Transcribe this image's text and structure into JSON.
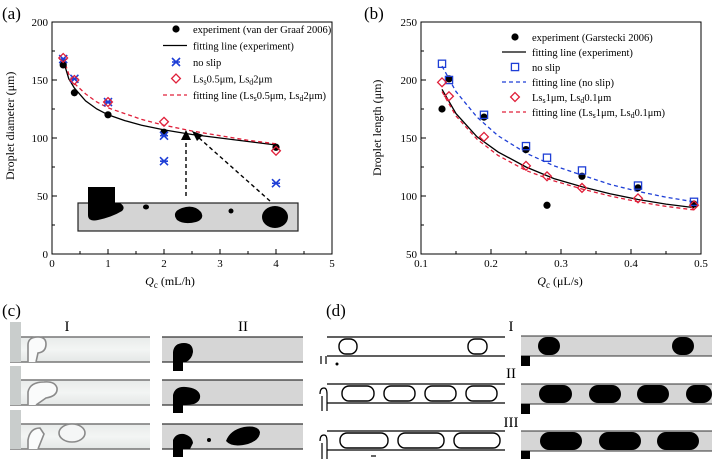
{
  "panels": {
    "a": "(a)",
    "b": "(b)",
    "c": "(c)",
    "d": "(d)"
  },
  "chart_data": [
    {
      "type": "scatter",
      "panel": "(a)",
      "xlabel_main": "Q",
      "xlabel_sub": "c",
      "xlabel_unit": " (mL/h)",
      "ylabel": "Droplet diameter (μm)",
      "xlim": [
        0,
        5
      ],
      "ylim": [
        0,
        200
      ],
      "xticks": [
        "0",
        "1",
        "2",
        "3",
        "4",
        "5"
      ],
      "yticks": [
        "0",
        "50",
        "100",
        "150",
        "200"
      ],
      "legend_position": "top-right",
      "legend": [
        {
          "label": "experiment (van der Graaf 2006)"
        },
        {
          "label": "fitting line (experiment)"
        },
        {
          "label": "no slip"
        },
        {
          "label_parts": [
            "Ls",
            "s",
            "0.5μm, Ls",
            "d",
            "2μm"
          ]
        },
        {
          "label_parts": [
            "fitting line (Ls",
            "s",
            "0.5μm, Ls",
            "d",
            "2μm)"
          ]
        }
      ],
      "series": [
        {
          "name": "experiment (van der Graaf 2006)",
          "marker": "circle",
          "color": "#000000",
          "x": [
            0.2,
            0.4,
            1.0,
            2.0,
            4.0
          ],
          "y": [
            163,
            139,
            120,
            105,
            92
          ]
        },
        {
          "name": "no slip",
          "marker": "cross",
          "color": "#1f3fd6",
          "x": [
            0.2,
            0.4,
            1.0,
            2.0,
            2.0,
            4.0
          ],
          "y": [
            168,
            151,
            131,
            102,
            80,
            61
          ]
        },
        {
          "name": "Ls0.5μm, Ls2μm",
          "marker": "diamond",
          "color": "#e0203a",
          "x": [
            0.2,
            0.4,
            1.0,
            2.0,
            4.0
          ],
          "y": [
            169,
            150,
            131,
            114,
            89
          ]
        }
      ],
      "curves": [
        {
          "name": "fitting line (experiment)",
          "style": "solid",
          "color": "#000000",
          "x": [
            0.2,
            0.3,
            0.4,
            0.6,
            0.8,
            1.0,
            1.3,
            1.6,
            2.0,
            2.5,
            3.0,
            3.5,
            4.0
          ],
          "y": [
            167,
            151,
            143,
            132,
            125,
            120,
            115,
            111,
            107,
            103,
            100,
            97,
            94
          ]
        },
        {
          "name": "fitting line (Ls0.5μm, Ls2μm)",
          "style": "dashed",
          "color": "#e0203a",
          "x": [
            0.2,
            0.3,
            0.4,
            0.6,
            0.8,
            1.0,
            1.3,
            1.6,
            2.0,
            2.5,
            3.0,
            3.5,
            4.0
          ],
          "y": [
            169,
            155,
            147,
            138,
            131,
            126,
            121,
            116,
            111,
            106,
            102,
            98,
            95
          ]
        }
      ]
    },
    {
      "type": "scatter",
      "panel": "(b)",
      "xlabel_main": "Q",
      "xlabel_sub": "c",
      "xlabel_unit": " (μL/s)",
      "ylabel": "Droplet length (μm)",
      "xlim": [
        0.1,
        0.5
      ],
      "ylim": [
        50,
        250
      ],
      "xticks": [
        "0.1",
        "0.2",
        "0.3",
        "0.4",
        "0.5"
      ],
      "yticks": [
        "50",
        "100",
        "150",
        "200",
        "250"
      ],
      "legend_position": "top-right",
      "legend": [
        {
          "label": "experiment (Garstecki 2006)"
        },
        {
          "label": "fitting line (experiment)"
        },
        {
          "label": "no slip"
        },
        {
          "label": "fitting line (no slip)"
        },
        {
          "label_parts": [
            "Ls",
            "s",
            "1μm, Ls",
            "d",
            "0.1μm"
          ]
        },
        {
          "label_parts": [
            "fitting line (Ls",
            "s",
            "1μm, Ls",
            "d",
            "0.1μm)"
          ]
        }
      ],
      "series": [
        {
          "name": "experiment (Garstecki 2006)",
          "marker": "circle",
          "color": "#000000",
          "x": [
            0.13,
            0.14,
            0.19,
            0.25,
            0.28,
            0.33,
            0.41,
            0.49
          ],
          "y": [
            175,
            201,
            168,
            140,
            92,
            117,
            107,
            93
          ]
        },
        {
          "name": "no slip",
          "marker": "square",
          "color": "#1f3fd6",
          "x": [
            0.13,
            0.14,
            0.19,
            0.25,
            0.28,
            0.33,
            0.41,
            0.49
          ],
          "y": [
            214,
            200,
            170,
            143,
            133,
            122,
            109,
            95
          ]
        },
        {
          "name": "Ls1μm, Ls0.1μm",
          "marker": "diamond",
          "color": "#e0203a",
          "x": [
            0.13,
            0.14,
            0.19,
            0.25,
            0.28,
            0.33,
            0.41,
            0.49
          ],
          "y": [
            198,
            186,
            151,
            126,
            117,
            107,
            98,
            92
          ]
        }
      ],
      "curves": [
        {
          "name": "fitting line (experiment)",
          "style": "solid",
          "color": "#000000",
          "x": [
            0.13,
            0.15,
            0.18,
            0.21,
            0.25,
            0.29,
            0.33,
            0.37,
            0.41,
            0.45,
            0.49
          ],
          "y": [
            192,
            171,
            151,
            138,
            125,
            115,
            108,
            102,
            97,
            93,
            90
          ]
        },
        {
          "name": "fitting line (no slip)",
          "style": "dashed",
          "color": "#1f3fd6",
          "x": [
            0.13,
            0.15,
            0.18,
            0.21,
            0.25,
            0.29,
            0.33,
            0.37,
            0.41,
            0.45,
            0.49
          ],
          "y": [
            212,
            190,
            168,
            152,
            137,
            126,
            118,
            110,
            104,
            99,
            95
          ]
        },
        {
          "name": "fitting line (Ls1μm, Ls0.1μm)",
          "style": "dashed",
          "color": "#e0203a",
          "x": [
            0.13,
            0.15,
            0.18,
            0.21,
            0.25,
            0.29,
            0.33,
            0.37,
            0.41,
            0.45,
            0.49
          ],
          "y": [
            190,
            169,
            149,
            135,
            122,
            113,
            106,
            100,
            95,
            91,
            88
          ]
        }
      ]
    }
  ],
  "roman": {
    "c1": "I",
    "c2": "II",
    "d1": "I",
    "d2": "II",
    "d3": "III"
  }
}
